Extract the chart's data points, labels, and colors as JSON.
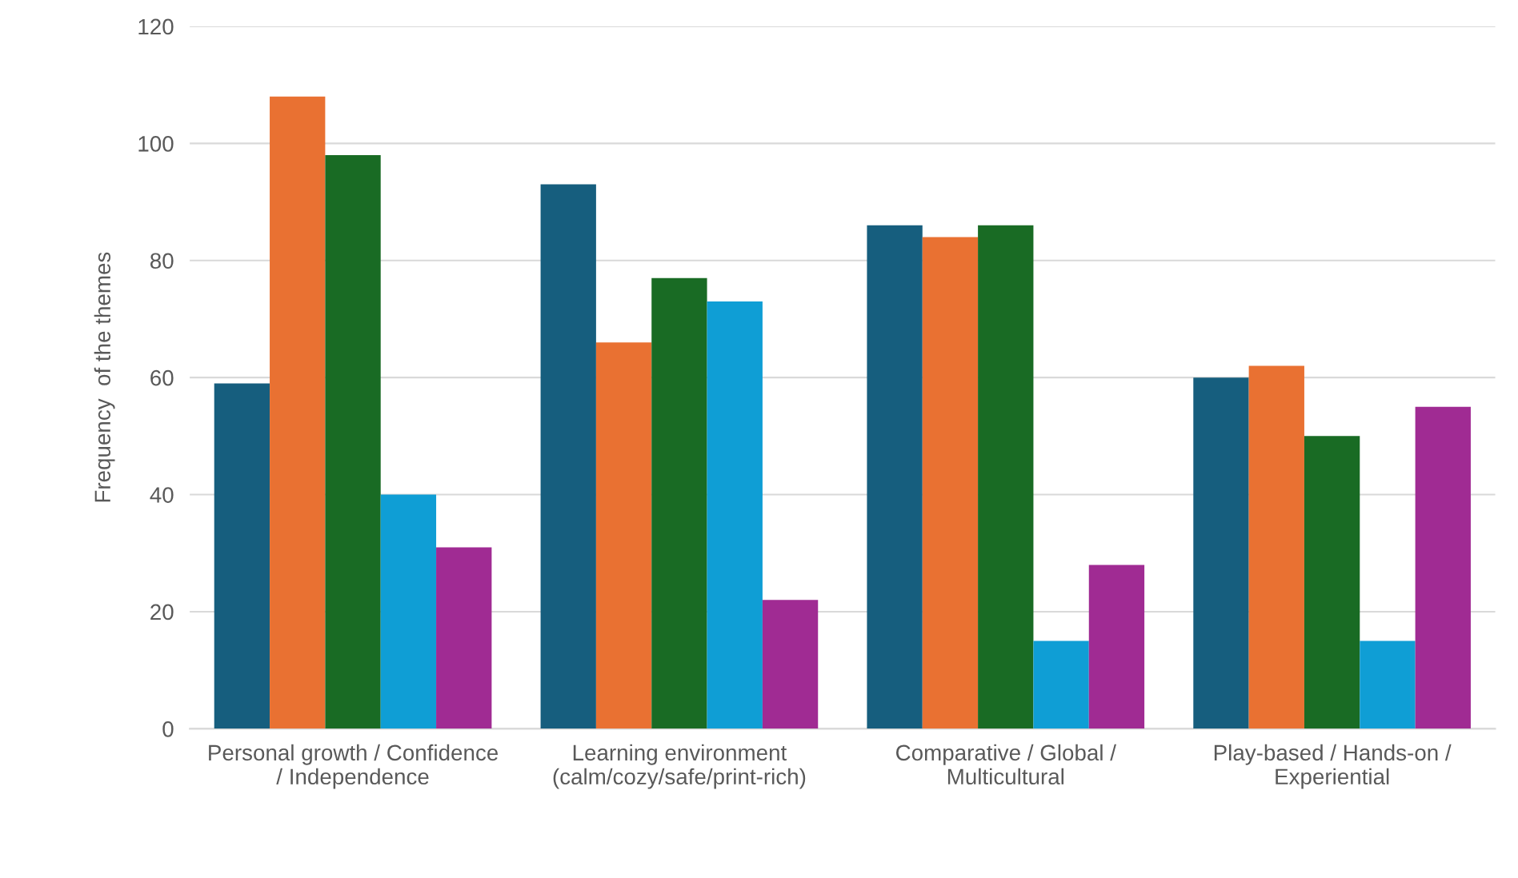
{
  "chart_data": {
    "type": "bar",
    "ylabel": "Frequency  of the themes",
    "categories": [
      "Personal growth / Confidence\n/ Independence",
      "Learning environment\n(calm/cozy/safe/print-rich)",
      "Comparative / Global /\nMulticultural",
      "Play-based / Hands-on /\nExperiential"
    ],
    "series": [
      {
        "color": "#165e7e",
        "values": [
          59,
          93,
          86,
          60
        ]
      },
      {
        "color": "#e97132",
        "values": [
          108,
          66,
          84,
          62
        ]
      },
      {
        "color": "#196b24",
        "values": [
          98,
          77,
          86,
          50
        ]
      },
      {
        "color": "#0f9ed5",
        "values": [
          40,
          73,
          15,
          15
        ]
      },
      {
        "color": "#a02b93",
        "values": [
          31,
          22,
          28,
          55
        ]
      }
    ],
    "ylim": [
      0,
      120
    ],
    "yticks": [
      0,
      20,
      40,
      60,
      80,
      100,
      120
    ],
    "grid": "y",
    "legend": false
  }
}
